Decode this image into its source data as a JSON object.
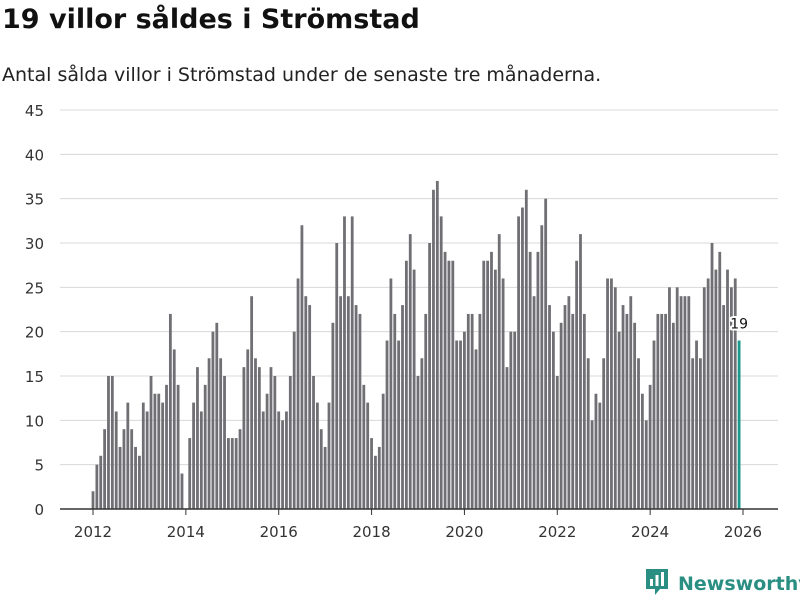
{
  "header": {
    "title": "19 villor såldes i Strömstad",
    "subtitle": "Antal sålda villor i Strömstad under de senaste tre månaderna."
  },
  "brand": {
    "name": "Newsworthy"
  },
  "colors": {
    "bar": "#707074",
    "highlight": "#1a9a8a",
    "grid": "#d8d8d8",
    "axis": "#333333",
    "brand": "#2a8f82"
  },
  "chart_data": {
    "type": "bar",
    "title": "19 villor såldes i Strömstad",
    "subtitle": "Antal sålda villor i Strömstad under de senaste tre månaderna.",
    "xlabel": "",
    "ylabel": "",
    "ylim": [
      0,
      45
    ],
    "yticks": [
      0,
      5,
      10,
      15,
      20,
      25,
      30,
      35,
      40,
      45
    ],
    "xticks": [
      {
        "label": "2012",
        "value": 2012
      },
      {
        "label": "2014",
        "value": 2014
      },
      {
        "label": "2016",
        "value": 2016
      },
      {
        "label": "2018",
        "value": 2018
      },
      {
        "label": "2020",
        "value": 2020
      },
      {
        "label": "2022",
        "value": 2022
      },
      {
        "label": "2024",
        "value": 2024
      },
      {
        "label": "2026",
        "value": 2026
      }
    ],
    "x_start": 2012.0,
    "x_step": 0.08333,
    "values": [
      2,
      5,
      6,
      9,
      15,
      15,
      11,
      7,
      9,
      12,
      9,
      7,
      6,
      12,
      11,
      15,
      13,
      13,
      12,
      14,
      22,
      18,
      14,
      4,
      0,
      8,
      12,
      16,
      11,
      14,
      17,
      20,
      21,
      17,
      15,
      8,
      8,
      8,
      9,
      16,
      18,
      24,
      17,
      16,
      11,
      13,
      16,
      15,
      11,
      10,
      11,
      15,
      20,
      26,
      32,
      24,
      23,
      15,
      12,
      9,
      7,
      12,
      21,
      30,
      24,
      33,
      24,
      33,
      23,
      22,
      14,
      12,
      8,
      6,
      7,
      13,
      19,
      26,
      22,
      19,
      23,
      28,
      31,
      27,
      15,
      17,
      22,
      30,
      36,
      37,
      33,
      29,
      28,
      28,
      19,
      19,
      20,
      22,
      22,
      18,
      22,
      28,
      28,
      29,
      27,
      31,
      26,
      16,
      20,
      20,
      33,
      34,
      36,
      29,
      24,
      29,
      32,
      35,
      23,
      20,
      15,
      21,
      23,
      24,
      22,
      28,
      31,
      22,
      17,
      10,
      13,
      12,
      17,
      26,
      26,
      25,
      20,
      23,
      22,
      24,
      21,
      17,
      13,
      10,
      14,
      19,
      22,
      22,
      22,
      25,
      21,
      25,
      24,
      24,
      24,
      17,
      19,
      17,
      25,
      26,
      30,
      27,
      29,
      23,
      27,
      25,
      26,
      19
    ],
    "highlight_last": true,
    "annotations": [
      {
        "label": "19",
        "value": 19
      }
    ]
  }
}
